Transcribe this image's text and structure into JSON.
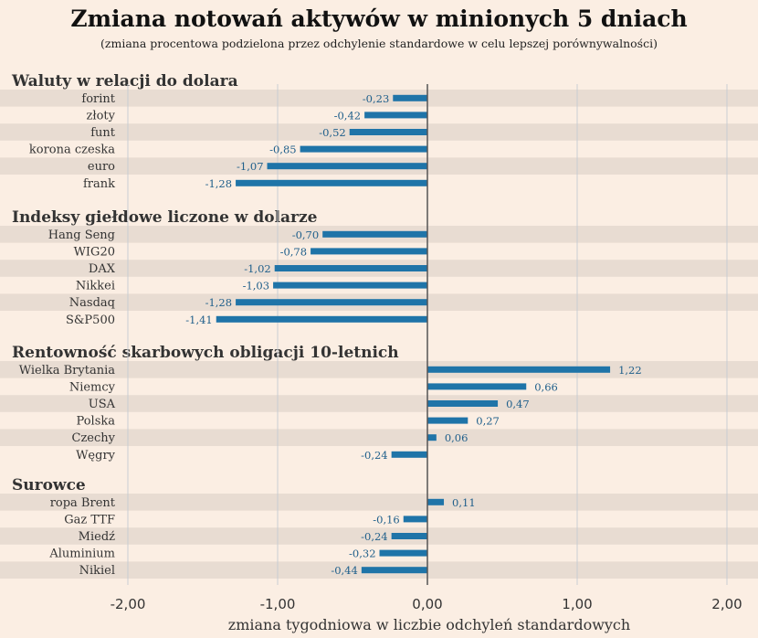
{
  "chart_data": {
    "type": "bar",
    "orientation": "horizontal",
    "title": "Zmiana notowań aktywów w minionych 5 dniach",
    "subtitle": "(zmiana procentowa podzielona przez odchylenie standardowe w celu lepszej porównywalności)",
    "xlabel": "zmiana tygodniowa w liczbie odchyleń standardowych",
    "xlim": [
      -2,
      2
    ],
    "xticks": [
      -2,
      -1,
      0,
      1,
      2
    ],
    "xtick_labels": [
      "-2,00",
      "-1,00",
      "0,00",
      "1,00",
      "2,00"
    ],
    "grid": true,
    "bar_color": "#1f74a8",
    "groups": [
      {
        "name": "Waluty w relacji do dolara",
        "categories": [
          "forint",
          "złoty",
          "funt",
          "korona czeska",
          "euro",
          "frank"
        ],
        "values": [
          -0.23,
          -0.42,
          -0.52,
          -0.85,
          -1.07,
          -1.28
        ],
        "labels": [
          "-0,23",
          "-0,42",
          "-0,52",
          "-0,85",
          "-1,07",
          "-1,28"
        ]
      },
      {
        "name": "Indeksy giełdowe liczone w dolarze",
        "categories": [
          "Hang Seng",
          "WIG20",
          "DAX",
          "Nikkei",
          "Nasdaq",
          "S&P500"
        ],
        "values": [
          -0.7,
          -0.78,
          -1.02,
          -1.03,
          -1.28,
          -1.41
        ],
        "labels": [
          "-0,70",
          "-0,78",
          "-1,02",
          "-1,03",
          "-1,28",
          "-1,41"
        ]
      },
      {
        "name": "Rentowność skarbowych obligacji 10-letnich",
        "categories": [
          "Wielka Brytania",
          "Niemcy",
          "USA",
          "Polska",
          "Czechy",
          "Węgry"
        ],
        "values": [
          1.22,
          0.66,
          0.47,
          0.27,
          0.06,
          -0.24
        ],
        "labels": [
          "1,22",
          "0,66",
          "0,47",
          "0,27",
          "0,06",
          "-0,24"
        ]
      },
      {
        "name": "Surowce",
        "categories": [
          "ropa Brent",
          "Gaz TTF",
          "Miedź",
          "Aluminium",
          "Nikiel"
        ],
        "values": [
          0.11,
          -0.16,
          -0.24,
          -0.32,
          -0.44
        ],
        "labels": [
          "0,11",
          "-0,16",
          "-0,24",
          "-0,32",
          "-0,44"
        ]
      }
    ]
  }
}
